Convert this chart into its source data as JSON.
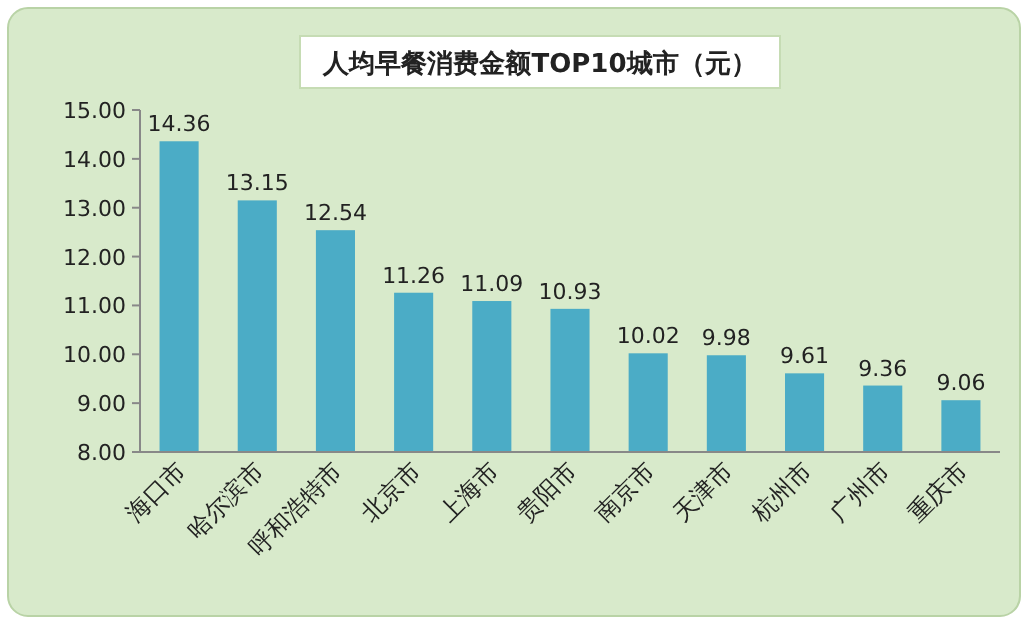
{
  "chart_data": {
    "type": "bar",
    "title": "人均早餐消费金额TOP10城市（元）",
    "categories": [
      "海口市",
      "哈尔滨市",
      "呼和浩特市",
      "北京市",
      "上海市",
      "贵阳市",
      "南京市",
      "天津市",
      "杭州市",
      "广州市",
      "重庆市"
    ],
    "values": [
      14.36,
      13.15,
      12.54,
      11.26,
      11.09,
      10.93,
      10.02,
      9.98,
      9.61,
      9.36,
      9.06
    ],
    "color": "#4bacc6",
    "data_labels": true,
    "grid": false,
    "ylim": [
      8,
      15
    ],
    "yticks": [
      {
        "value": 8,
        "label": "8.00"
      },
      {
        "value": 9,
        "label": "9.00"
      },
      {
        "value": 10,
        "label": "10.00"
      },
      {
        "value": 11,
        "label": "11.00"
      },
      {
        "value": 12,
        "label": "12.00"
      },
      {
        "value": 13,
        "label": "13.00"
      },
      {
        "value": 14,
        "label": "14.00"
      },
      {
        "value": 15,
        "label": "15.00"
      }
    ]
  }
}
